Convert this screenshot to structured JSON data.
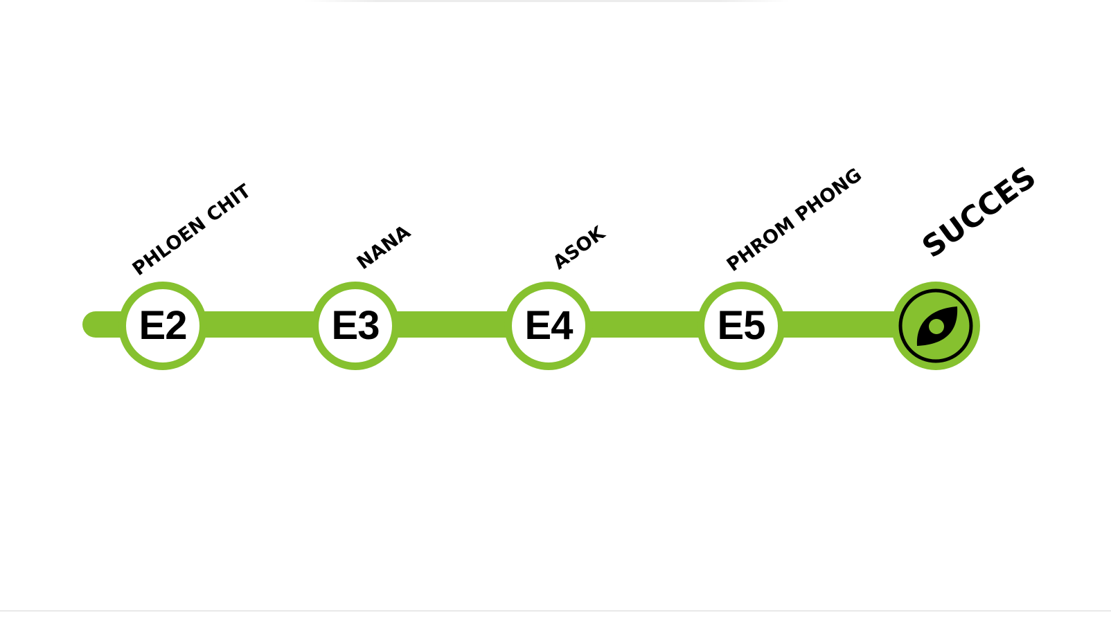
{
  "line": {
    "color": "#86c12f",
    "stations": [
      {
        "code": "E2",
        "name": "PHLOEN CHIT"
      },
      {
        "code": "E3",
        "name": "NANA"
      },
      {
        "code": "E4",
        "name": "ASOK"
      },
      {
        "code": "E5",
        "name": "PHROM PHONG"
      }
    ],
    "destination": {
      "name": "SUCCES",
      "icon": "leaf-target-icon"
    }
  }
}
